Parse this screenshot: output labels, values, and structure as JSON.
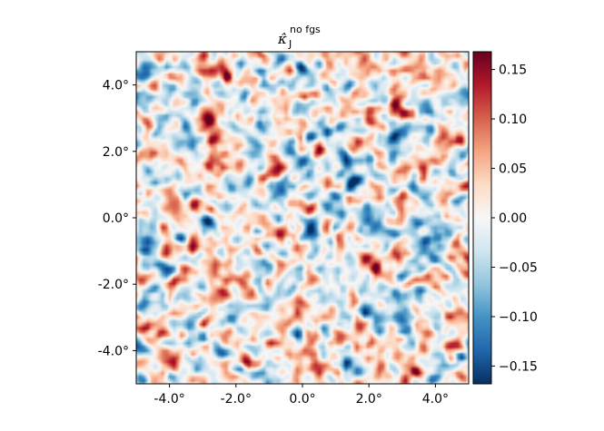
{
  "chart_data": {
    "type": "heatmap",
    "title": {
      "symbol": "κ̂",
      "subscript": "J",
      "superscript": "no fgs"
    },
    "xlabel": "",
    "ylabel": "",
    "xlim": [
      -5.0,
      5.0
    ],
    "ylim": [
      -5.0,
      5.0
    ],
    "x_ticks": [
      -4.0,
      -2.0,
      0.0,
      2.0,
      4.0
    ],
    "x_tick_labels": [
      "-4.0°",
      "-2.0°",
      "0.0°",
      "2.0°",
      "4.0°"
    ],
    "y_ticks": [
      4.0,
      2.0,
      0.0,
      -2.0,
      -4.0
    ],
    "y_tick_labels": [
      "4.0°",
      "2.0°",
      "0.0°",
      "-2.0°",
      "-4.0°"
    ],
    "colorbar": {
      "colormap": "RdBu_r",
      "range": [
        -0.168,
        0.168
      ],
      "ticks": [
        0.15,
        0.1,
        0.05,
        0.0,
        -0.05,
        -0.1,
        -0.15
      ],
      "tick_labels": [
        "0.15",
        "0.10",
        "0.05",
        "0.00",
        "−0.05",
        "−0.10",
        "−0.15"
      ],
      "colors": [
        "#053061",
        "#2166ac",
        "#4393c3",
        "#92c5de",
        "#d1e5f0",
        "#f7f7f7",
        "#fddbc7",
        "#f4a582",
        "#d6604d",
        "#b2182b",
        "#67001f"
      ]
    },
    "grid": false,
    "field_description_seed": 7
  }
}
